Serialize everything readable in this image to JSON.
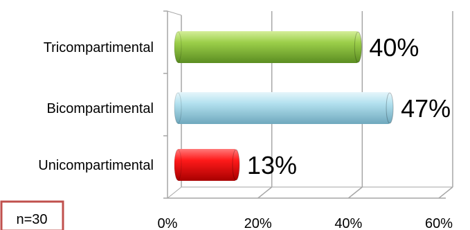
{
  "chart_data": {
    "type": "bar",
    "orientation": "horizontal",
    "style": "3d-cylinder",
    "categories": [
      "Tricompartimental",
      "Bicompartimental",
      "Unicompartimental"
    ],
    "values": [
      40,
      47,
      13
    ],
    "data_labels": [
      "40%",
      "47%",
      "13%"
    ],
    "colors": [
      "#8cc63f",
      "#aedcec",
      "#ff0000"
    ],
    "xlim": [
      0,
      60
    ],
    "xticks": [
      0,
      20,
      40,
      60
    ],
    "xtick_labels": [
      "0%",
      "20%",
      "40%",
      "60%"
    ],
    "grid": true,
    "legend": "none",
    "annotation": "n=30"
  }
}
